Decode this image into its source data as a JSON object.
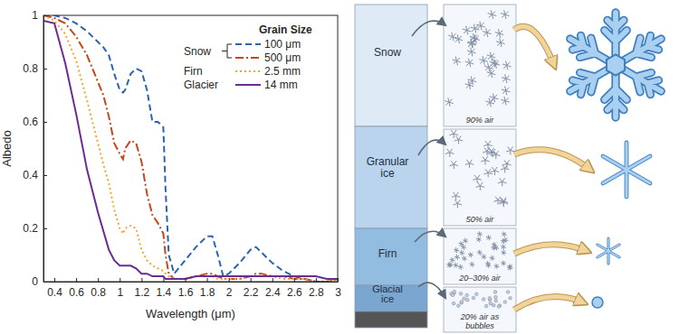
{
  "chart_data": {
    "type": "line",
    "x_label": "Wavelength (μm)",
    "y_label": "Albedo",
    "legend_title": "Grain Size",
    "x": [
      0.3,
      0.4,
      0.5,
      0.6,
      0.7,
      0.8,
      0.85,
      0.9,
      0.95,
      1.0,
      1.03,
      1.05,
      1.1,
      1.15,
      1.2,
      1.25,
      1.3,
      1.35,
      1.4,
      1.42,
      1.45,
      1.5,
      1.6,
      1.7,
      1.8,
      1.85,
      1.9,
      1.95,
      2.0,
      2.1,
      2.2,
      2.25,
      2.3,
      2.4,
      2.5,
      2.6,
      2.7,
      2.8,
      2.9,
      3.0
    ],
    "series": [
      {
        "name": "100 μm",
        "group": "Snow",
        "color": "#2a64b0",
        "line_style": "dashed",
        "values": [
          1.0,
          1.0,
          0.99,
          0.97,
          0.94,
          0.9,
          0.88,
          0.85,
          0.78,
          0.72,
          0.71,
          0.72,
          0.78,
          0.8,
          0.79,
          0.72,
          0.6,
          0.6,
          0.58,
          0.35,
          0.1,
          0.03,
          0.08,
          0.13,
          0.17,
          0.17,
          0.1,
          0.02,
          0.03,
          0.07,
          0.12,
          0.13,
          0.11,
          0.07,
          0.04,
          0.02,
          0.01,
          0.0,
          0.0,
          0.01
        ]
      },
      {
        "name": "500 μm",
        "color": "#c8461c",
        "line_style": "dashdot",
        "values": [
          1.0,
          0.99,
          0.97,
          0.92,
          0.85,
          0.75,
          0.7,
          0.62,
          0.52,
          0.48,
          0.46,
          0.5,
          0.53,
          0.52,
          0.45,
          0.33,
          0.25,
          0.22,
          0.18,
          0.1,
          0.03,
          0.01,
          0.01,
          0.02,
          0.03,
          0.03,
          0.02,
          0.01,
          0.01,
          0.01,
          0.02,
          0.03,
          0.03,
          0.02,
          0.02,
          0.01,
          0.01,
          0.0,
          0.0,
          0.01
        ]
      },
      {
        "name": "2.5 mm",
        "group": "Firn",
        "color": "#eea630",
        "line_style": "dotted",
        "values": [
          1.0,
          0.98,
          0.93,
          0.83,
          0.68,
          0.52,
          0.44,
          0.37,
          0.27,
          0.2,
          0.18,
          0.2,
          0.21,
          0.2,
          0.12,
          0.08,
          0.06,
          0.05,
          0.04,
          0.03,
          0.02,
          0.01,
          0.01,
          0.02,
          0.02,
          0.02,
          0.01,
          0.01,
          0.01,
          0.01,
          0.02,
          0.02,
          0.02,
          0.02,
          0.01,
          0.01,
          0.01,
          0.0,
          0.0,
          0.01
        ]
      },
      {
        "name": "14 mm",
        "group": "Glacier",
        "color": "#6a2c91",
        "line_style": "solid",
        "values": [
          0.98,
          0.97,
          0.82,
          0.63,
          0.42,
          0.26,
          0.19,
          0.12,
          0.08,
          0.06,
          0.06,
          0.06,
          0.06,
          0.05,
          0.03,
          0.03,
          0.02,
          0.02,
          0.02,
          0.01,
          0.01,
          0.01,
          0.01,
          0.02,
          0.02,
          0.02,
          0.02,
          0.02,
          0.02,
          0.02,
          0.02,
          0.02,
          0.02,
          0.02,
          0.02,
          0.02,
          0.02,
          0.02,
          0.01,
          0.01
        ]
      }
    ],
    "xlim": [
      0.3,
      3
    ],
    "ylim": [
      0,
      1
    ],
    "xticks": [
      0.4,
      0.6,
      0.8,
      1,
      1.2,
      1.4,
      1.6,
      1.8,
      2,
      2.2,
      2.4,
      2.6,
      2.8,
      3
    ],
    "yticks": [
      0,
      0.2,
      0.4,
      0.6,
      0.8,
      1
    ],
    "grid": false,
    "legend": "upper right"
  },
  "diagram": {
    "layers": [
      {
        "label": [
          "Snow"
        ],
        "air": [
          "90% air"
        ]
      },
      {
        "label": [
          "Granular",
          "ice"
        ],
        "air": [
          "50% air"
        ]
      },
      {
        "label": [
          "Firn"
        ],
        "air": [
          "20–30% air"
        ]
      },
      {
        "label": [
          "Glacial",
          "ice"
        ],
        "air": [
          "20% air as",
          "bubbles"
        ]
      }
    ]
  }
}
